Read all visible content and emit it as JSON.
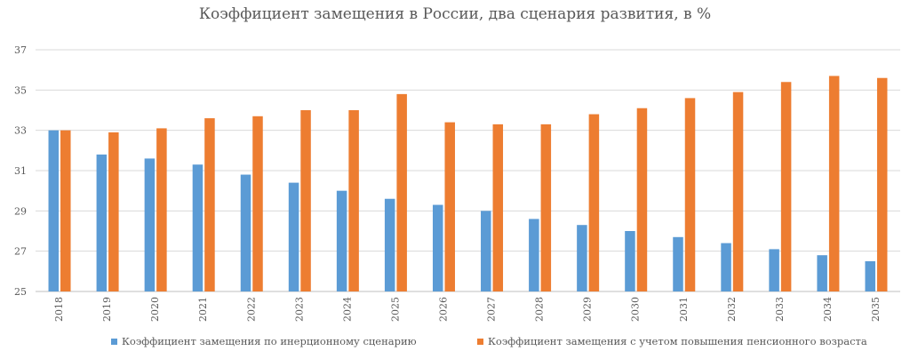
{
  "chart_data": {
    "type": "bar",
    "title": "Коэффициент замещения в России, два сценария развития, в %",
    "categories": [
      "2018",
      "2019",
      "2020",
      "2021",
      "2022",
      "2023",
      "2024",
      "2025",
      "2026",
      "2027",
      "2028",
      "2029",
      "2030",
      "2031",
      "2032",
      "2033",
      "2034",
      "2035"
    ],
    "series": [
      {
        "name": "Коэффициент замещения по инерционному сценарию",
        "color": "#5B9BD5",
        "values": [
          33.0,
          31.8,
          31.6,
          31.3,
          30.8,
          30.4,
          30.0,
          29.6,
          29.3,
          29.0,
          28.6,
          28.3,
          28.0,
          27.7,
          27.4,
          27.1,
          26.8,
          26.5
        ]
      },
      {
        "name": "Коэффициент замещения с учетом повышения пенсионного возраста",
        "color": "#ED7D31",
        "values": [
          33.0,
          32.9,
          33.1,
          33.6,
          33.7,
          34.0,
          34.0,
          34.8,
          33.4,
          33.3,
          33.3,
          33.8,
          34.1,
          34.6,
          34.9,
          35.4,
          35.7,
          35.6
        ]
      }
    ],
    "yticks": [
      "25",
      "27",
      "29",
      "31",
      "33",
      "35",
      "37"
    ],
    "ylim": [
      25,
      37
    ],
    "grid": true,
    "legend": "bottom"
  }
}
